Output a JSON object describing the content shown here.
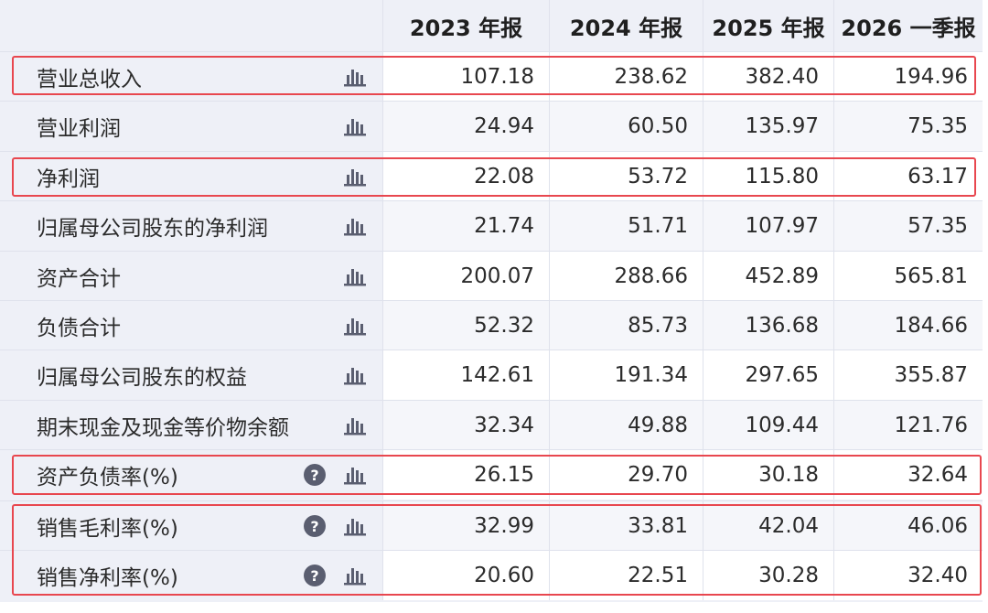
{
  "table": {
    "columns": [
      "2023 年报",
      "2024 年报",
      "2025 年报",
      "2026 一季报"
    ],
    "rows": [
      {
        "label": "营业总收入",
        "values": [
          "107.18",
          "238.62",
          "382.40",
          "194.96"
        ],
        "help": false
      },
      {
        "label": "营业利润",
        "values": [
          "24.94",
          "60.50",
          "135.97",
          "75.35"
        ],
        "help": false
      },
      {
        "label": "净利润",
        "values": [
          "22.08",
          "53.72",
          "115.80",
          "63.17"
        ],
        "help": false
      },
      {
        "label": "归属母公司股东的净利润",
        "values": [
          "21.74",
          "51.71",
          "107.97",
          "57.35"
        ],
        "help": false
      },
      {
        "label": "资产合计",
        "values": [
          "200.07",
          "288.66",
          "452.89",
          "565.81"
        ],
        "help": false
      },
      {
        "label": "负债合计",
        "values": [
          "52.32",
          "85.73",
          "136.68",
          "184.66"
        ],
        "help": false
      },
      {
        "label": "归属母公司股东的权益",
        "values": [
          "142.61",
          "191.34",
          "297.65",
          "355.87"
        ],
        "help": false
      },
      {
        "label": "期末现金及现金等价物余额",
        "values": [
          "32.34",
          "49.88",
          "109.44",
          "121.76"
        ],
        "help": false
      },
      {
        "label": "资产负债率(%)",
        "values": [
          "26.15",
          "29.70",
          "30.18",
          "32.64"
        ],
        "help": true
      },
      {
        "label": "销售毛利率(%)",
        "values": [
          "32.99",
          "33.81",
          "42.04",
          "46.06"
        ],
        "help": true
      },
      {
        "label": "销售净利率(%)",
        "values": [
          "20.60",
          "22.51",
          "30.28",
          "32.40"
        ],
        "help": true
      }
    ],
    "help_symbol": "?",
    "icon_names": {
      "chart": "bar-chart-icon",
      "help": "help-icon"
    }
  },
  "colors": {
    "highlight": "#e8474f",
    "label_bg": "#eef0f7",
    "icon": "#5a5e70"
  }
}
